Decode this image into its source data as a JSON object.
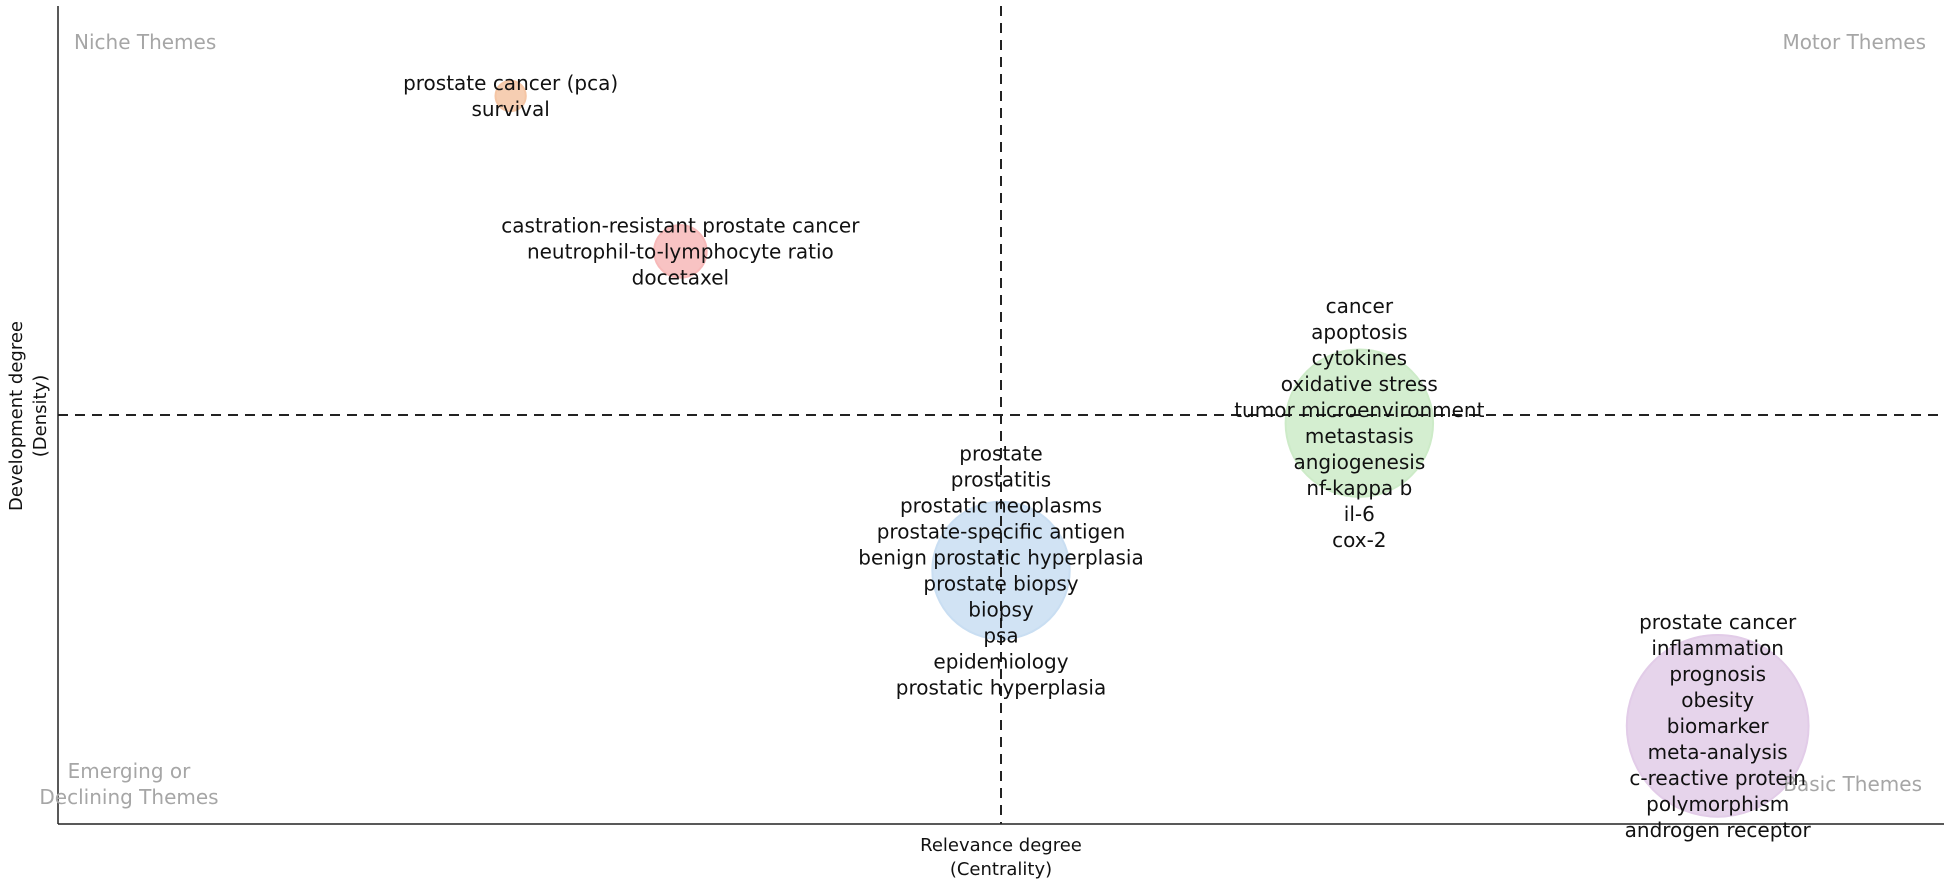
{
  "chart_data": {
    "type": "scatter",
    "xlabel": [
      "Relevance degree",
      "(Centrality)"
    ],
    "ylabel": [
      "Development degree",
      "(Density)"
    ],
    "quadrants": {
      "top_left": "Niche Themes",
      "top_right": "Motor Themes",
      "bottom_left": [
        "Emerging or",
        "Declining Themes"
      ],
      "bottom_right": "Basic Themes"
    },
    "grid": false,
    "clusters": [
      {
        "x": 0.24,
        "y": 0.89,
        "size": 0.15,
        "color": "#f5c6a5",
        "keywords": [
          "prostate cancer (pca)",
          "survival"
        ]
      },
      {
        "x": 0.33,
        "y": 0.7,
        "size": 0.26,
        "color": "#f7b9b9",
        "keywords": [
          "castration-resistant prostate cancer",
          "neutrophil-to-lymphocyte ratio",
          "docetaxel"
        ]
      },
      {
        "x": 0.69,
        "y": 0.49,
        "size": 0.73,
        "color": "#cdebc8",
        "keywords": [
          "cancer",
          "apoptosis",
          "cytokines",
          "oxidative stress",
          "tumor microenvironment",
          "metastasis",
          "angiogenesis",
          "nf-kappa b",
          "il-6",
          "cox-2"
        ]
      },
      {
        "x": 0.5,
        "y": 0.31,
        "size": 0.68,
        "color": "#c9def2",
        "keywords": [
          "prostate",
          "prostatitis",
          "prostatic neoplasms",
          "prostate-specific antigen",
          "benign prostatic hyperplasia",
          "prostate biopsy",
          "biopsy",
          "psa",
          "epidemiology",
          "prostatic hyperplasia"
        ]
      },
      {
        "x": 0.88,
        "y": 0.12,
        "size": 0.9,
        "color": "#e2cce8",
        "keywords": [
          "prostate cancer",
          "inflammation",
          "prognosis",
          "obesity",
          "biomarker",
          "meta-analysis",
          "c-reactive protein",
          "polymorphism",
          "androgen receptor"
        ]
      }
    ],
    "xlim": [
      0,
      1
    ],
    "ylim": [
      0,
      1
    ],
    "reference_lines": {
      "x": 0.5,
      "y": 0.5
    }
  }
}
